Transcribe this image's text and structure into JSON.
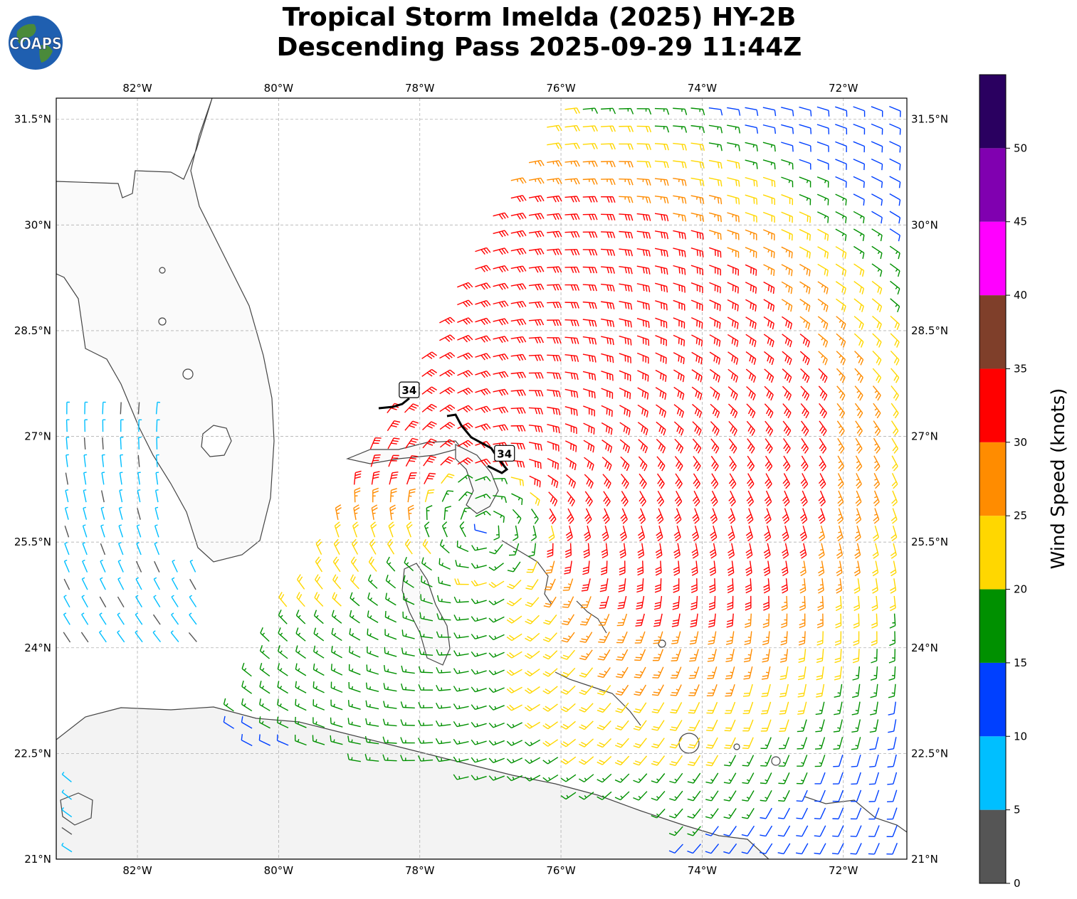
{
  "title": {
    "line1": "Tropical Storm Imelda (2025) HY-2B",
    "line2": "Descending Pass 2025-09-29 11:44Z"
  },
  "logo": {
    "text": "COAPS",
    "icon": "globe-icon"
  },
  "map": {
    "projection": "plate-carree",
    "lon_range": [
      -83.15,
      -71.1
    ],
    "lat_range": [
      21.0,
      31.8
    ],
    "lon_ticks": [
      {
        "value": -82,
        "label": "82°W"
      },
      {
        "value": -80,
        "label": "80°W"
      },
      {
        "value": -78,
        "label": "78°W"
      },
      {
        "value": -76,
        "label": "76°W"
      },
      {
        "value": -74,
        "label": "74°W"
      },
      {
        "value": -72,
        "label": "72°W"
      }
    ],
    "lat_ticks": [
      {
        "value": 21.0,
        "label": "21°N"
      },
      {
        "value": 22.5,
        "label": "22.5°N"
      },
      {
        "value": 24.0,
        "label": "24°N"
      },
      {
        "value": 25.5,
        "label": "25.5°N"
      },
      {
        "value": 27.0,
        "label": "27°N"
      },
      {
        "value": 28.5,
        "label": "28.5°N"
      },
      {
        "value": 30.0,
        "label": "30°N"
      },
      {
        "value": 31.5,
        "label": "31.5°N"
      }
    ],
    "gridlines": true,
    "storm_center": {
      "lon": -77.1,
      "lat": 25.7
    },
    "contour_34kt": [
      {
        "label": "34",
        "lon": -78.15,
        "lat": 27.65
      },
      {
        "label": "34",
        "lon": -76.8,
        "lat": 26.75
      }
    ],
    "colors": {
      "land": "#ffffff",
      "ocean": "#ffffff",
      "coast": "#444444",
      "grid": "#b0b0b0",
      "contour": "#000000"
    }
  },
  "colorbar": {
    "label": "Wind Speed (knots)",
    "ticks": [
      "0",
      "5",
      "10",
      "15",
      "20",
      "25",
      "30",
      "35",
      "40",
      "45",
      "50"
    ],
    "bins": [
      {
        "min": 0,
        "max": 5,
        "color": "#555555"
      },
      {
        "min": 5,
        "max": 10,
        "color": "#00bfff"
      },
      {
        "min": 10,
        "max": 15,
        "color": "#0040ff"
      },
      {
        "min": 15,
        "max": 20,
        "color": "#009000"
      },
      {
        "min": 20,
        "max": 25,
        "color": "#ffd700"
      },
      {
        "min": 25,
        "max": 30,
        "color": "#ff8c00"
      },
      {
        "min": 30,
        "max": 35,
        "color": "#ff0000"
      },
      {
        "min": 35,
        "max": 40,
        "color": "#7f3f2a"
      },
      {
        "min": 40,
        "max": 45,
        "color": "#ff00ff"
      },
      {
        "min": 45,
        "max": 50,
        "color": "#8000b0"
      },
      {
        "min": 50,
        "max": 55,
        "color": "#2a0060"
      }
    ]
  }
}
